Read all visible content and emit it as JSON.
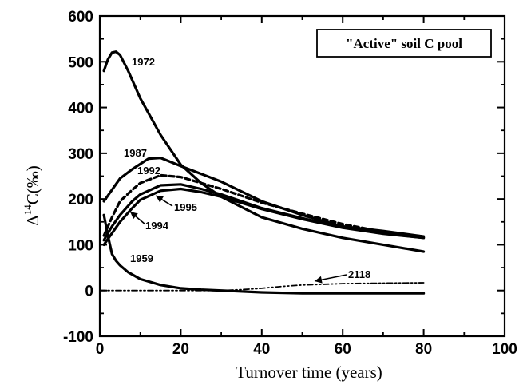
{
  "chart_data": {
    "type": "line",
    "title": "",
    "annotation_box": "\"Active\" soil C pool",
    "xlabel": "Turnover time (years)",
    "ylabel_prefix": "Δ",
    "ylabel_sup": "14",
    "ylabel_suffix": "C(‰)",
    "xlim": [
      0,
      100
    ],
    "ylim": [
      -100,
      600
    ],
    "xticks": [
      "0",
      "20",
      "40",
      "60",
      "80",
      "100"
    ],
    "yticks": [
      "-100",
      "0",
      "100",
      "200",
      "300",
      "400",
      "500",
      "600"
    ],
    "grid": false,
    "series": [
      {
        "name": "1972",
        "style": "solid",
        "x": [
          1,
          2,
          3,
          4,
          5,
          7,
          10,
          15,
          20,
          25,
          30,
          40,
          50,
          60,
          70,
          80
        ],
        "y": [
          480,
          505,
          520,
          522,
          515,
          480,
          420,
          340,
          275,
          235,
          205,
          160,
          135,
          115,
          100,
          85
        ]
      },
      {
        "name": "1987",
        "style": "solid",
        "x": [
          1,
          3,
          5,
          8,
          12,
          15,
          20,
          25,
          30,
          40,
          50,
          60,
          70,
          80
        ],
        "y": [
          195,
          220,
          245,
          265,
          288,
          290,
          272,
          255,
          238,
          195,
          165,
          140,
          130,
          118
        ]
      },
      {
        "name": "1992",
        "style": "dashed",
        "x": [
          1,
          3,
          5,
          8,
          10,
          15,
          20,
          25,
          30,
          40,
          50,
          60,
          70,
          80
        ],
        "y": [
          120,
          160,
          195,
          220,
          235,
          252,
          248,
          235,
          222,
          192,
          168,
          145,
          128,
          118
        ]
      },
      {
        "name": "1994",
        "style": "solid",
        "x": [
          1,
          3,
          5,
          8,
          10,
          15,
          20,
          25,
          30,
          40,
          50,
          60,
          70,
          80
        ],
        "y": [
          110,
          140,
          165,
          195,
          210,
          230,
          232,
          222,
          210,
          180,
          158,
          138,
          125,
          115
        ]
      },
      {
        "name": "1995",
        "style": "solid",
        "x": [
          1,
          3,
          5,
          8,
          10,
          15,
          20,
          25,
          30,
          40,
          50,
          60,
          70,
          80
        ],
        "y": [
          100,
          125,
          150,
          180,
          198,
          218,
          222,
          215,
          205,
          178,
          156,
          137,
          124,
          115
        ]
      },
      {
        "name": "1959",
        "style": "solid",
        "x": [
          1,
          2,
          3,
          4,
          5,
          7,
          10,
          15,
          20,
          25,
          30,
          40,
          50,
          60,
          70,
          80
        ],
        "y": [
          165,
          120,
          80,
          65,
          55,
          40,
          25,
          12,
          5,
          2,
          0,
          -4,
          -6,
          -6,
          -6,
          -6
        ]
      },
      {
        "name": "2118",
        "style": "dashdot",
        "x": [
          0,
          5,
          10,
          20,
          30,
          35,
          40,
          45,
          50,
          60,
          70,
          80
        ],
        "y": [
          0,
          0,
          0,
          0,
          0,
          2,
          5,
          9,
          12,
          15,
          16,
          17
        ]
      }
    ]
  }
}
